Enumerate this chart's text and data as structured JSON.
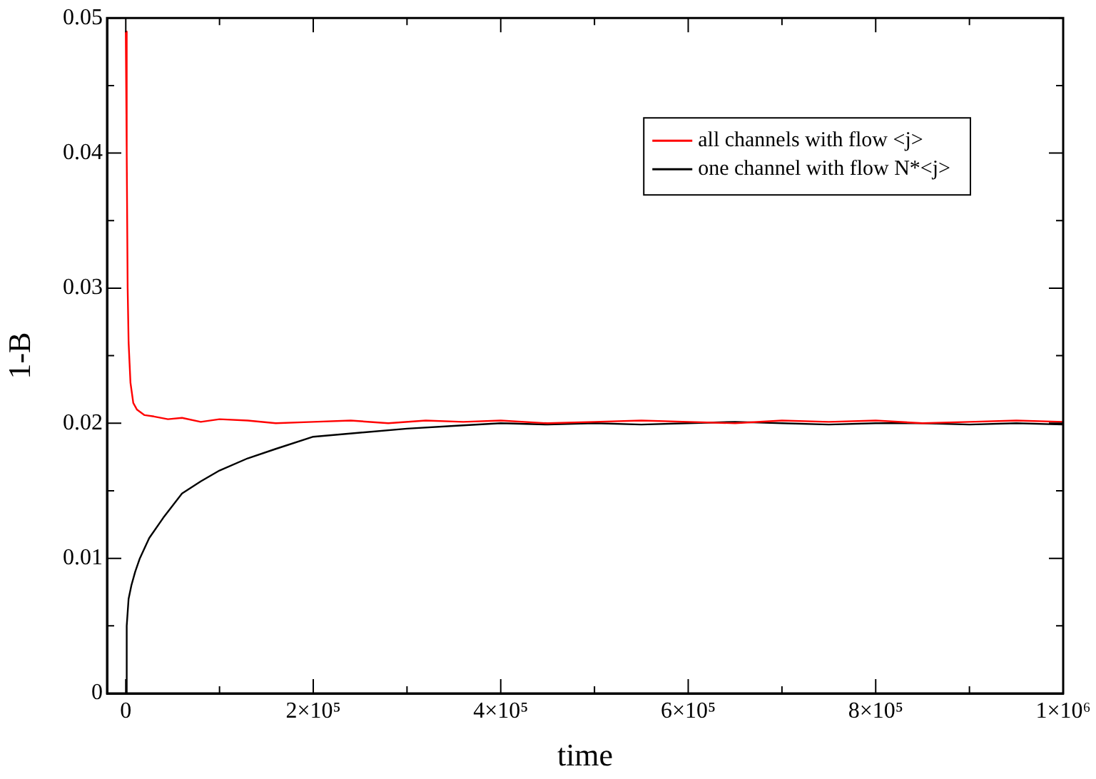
{
  "chart_data": {
    "type": "line",
    "xlabel": "time",
    "ylabel": "1-B",
    "xlim": [
      -20000,
      1000000
    ],
    "ylim": [
      0,
      0.05
    ],
    "xticks": [
      0,
      {
        "value": 100000,
        "label": null
      },
      {
        "value": 200000,
        "label": "2×10⁵"
      },
      {
        "value": 300000,
        "label": null
      },
      {
        "value": 400000,
        "label": "4×10⁵"
      },
      {
        "value": 500000,
        "label": null
      },
      {
        "value": 600000,
        "label": "6×10⁵"
      },
      {
        "value": 700000,
        "label": null
      },
      {
        "value": 800000,
        "label": "8×10⁵"
      },
      {
        "value": 900000,
        "label": null
      },
      {
        "value": 1000000,
        "label": "1×10⁶"
      }
    ],
    "yticks": [
      0,
      {
        "value": 0.005,
        "label": null
      },
      0.01,
      {
        "value": 0.015,
        "label": null
      },
      0.02,
      {
        "value": 0.025,
        "label": null
      },
      0.03,
      {
        "value": 0.035,
        "label": null
      },
      0.04,
      {
        "value": 0.045,
        "label": null
      },
      0.05
    ],
    "grid": false,
    "legend": "top right",
    "marker": "none",
    "line_style": "solid",
    "series": [
      {
        "name": "all channels with flow <j>",
        "color": "#ff0000",
        "x": [
          0,
          1000,
          2000,
          3000,
          5000,
          8000,
          12000,
          20000,
          30000,
          45000,
          60000,
          80000,
          100000,
          130000,
          160000,
          200000,
          240000,
          280000,
          320000,
          360000,
          400000,
          450000,
          500000,
          550000,
          600000,
          650000,
          700000,
          750000,
          800000,
          850000,
          900000,
          950000,
          1000000
        ],
        "values": [
          0.049,
          0.04,
          0.03,
          0.026,
          0.023,
          0.0215,
          0.021,
          0.0206,
          0.0205,
          0.0203,
          0.0204,
          0.0201,
          0.0203,
          0.0202,
          0.02,
          0.0201,
          0.0202,
          0.02,
          0.0202,
          0.0201,
          0.0202,
          0.02,
          0.0201,
          0.0202,
          0.0201,
          0.02,
          0.0202,
          0.0201,
          0.0202,
          0.02,
          0.0201,
          0.0202,
          0.0201
        ]
      },
      {
        "name": "one channel with flow N*<j>",
        "color": "#000000",
        "x": [
          0,
          1000,
          3000,
          6000,
          10000,
          15000,
          25000,
          40000,
          60000,
          80000,
          100000,
          130000,
          160000,
          200000,
          250000,
          300000,
          350000,
          400000,
          450000,
          500000,
          550000,
          600000,
          650000,
          700000,
          750000,
          800000,
          850000,
          900000,
          950000,
          1000000
        ],
        "values": [
          0,
          0.005,
          0.007,
          0.008,
          0.009,
          0.01,
          0.0115,
          0.013,
          0.0148,
          0.0157,
          0.0165,
          0.0174,
          0.0181,
          0.019,
          0.0193,
          0.0196,
          0.0198,
          0.02,
          0.0199,
          0.02,
          0.0199,
          0.02,
          0.0201,
          0.02,
          0.0199,
          0.02,
          0.02,
          0.0199,
          0.02,
          0.0199
        ]
      }
    ]
  }
}
